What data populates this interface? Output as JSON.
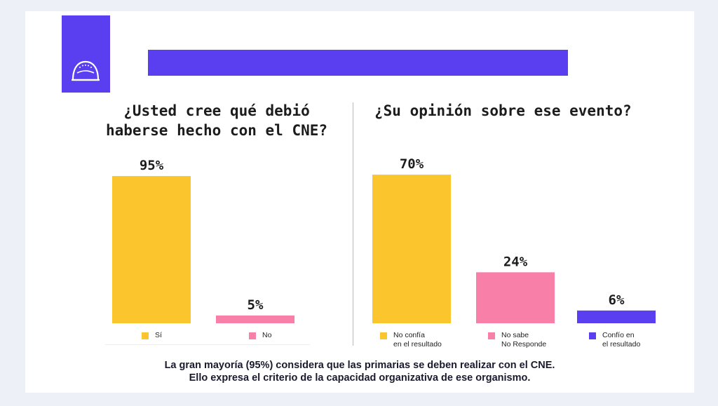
{
  "colors": {
    "accent": "#5a3ff0",
    "yellow": "#fbc52d",
    "pink": "#f77fa8",
    "purple": "#5a3ff0"
  },
  "logo": {
    "icon": "cap-icon"
  },
  "left_question": "¿Usted cree qué debió\nhaberse hecho con el CNE?",
  "right_question": "¿Su opinión sobre ese evento?",
  "footer": {
    "line1": "La gran mayoría (95%) considera que las primarias se deben realizar con el CNE.",
    "line2": "Ello expresa el criterio de la capacidad organizativa de ese organismo."
  },
  "chart_data": [
    {
      "type": "bar",
      "title": "¿Usted cree qué debió haberse hecho con el CNE?",
      "categories": [
        "Sí",
        "No"
      ],
      "values": [
        95,
        5
      ],
      "value_labels": [
        "95%",
        "5%"
      ],
      "colors": [
        "#fbc52d",
        "#f77fa8"
      ],
      "legend": "bottom",
      "ylim": [
        0,
        100
      ]
    },
    {
      "type": "bar",
      "title": "¿Su opinión sobre ese evento?",
      "categories": [
        "No confía\nen el resultado",
        "No sabe\nNo Responde",
        "Confío en\nel resultado"
      ],
      "values": [
        70,
        24,
        6
      ],
      "value_labels": [
        "70%",
        "24%",
        "6%"
      ],
      "colors": [
        "#fbc52d",
        "#f77fa8",
        "#5a3ff0"
      ],
      "legend": "bottom",
      "ylim": [
        0,
        73
      ]
    }
  ]
}
